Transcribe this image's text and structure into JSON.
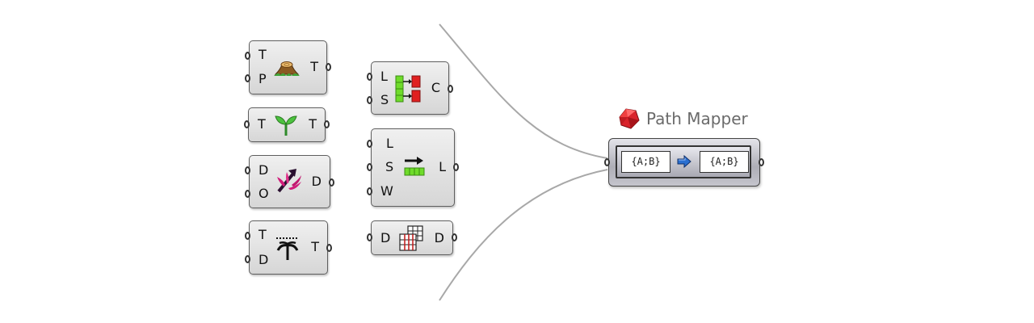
{
  "components": {
    "tree_statistics": {
      "icon": "tree-stump-icon",
      "inputs": [
        "T",
        "P"
      ],
      "outputs": [
        "T"
      ]
    },
    "simplify_tree": {
      "icon": "sprout-icon",
      "inputs": [
        "T"
      ],
      "outputs": [
        "T"
      ]
    },
    "graft_tree": {
      "icon": "graft-branch-icon",
      "inputs": [
        "D",
        "O"
      ],
      "outputs": [
        "D"
      ]
    },
    "flatten_tree": {
      "icon": "flatten-tree-icon",
      "inputs": [
        "T",
        "D"
      ],
      "outputs": [
        "T"
      ]
    },
    "split_list": {
      "icon": "split-list-icon",
      "inputs": [
        "L",
        "S"
      ],
      "outputs": [
        "C"
      ]
    },
    "shift_list": {
      "icon": "shift-list-icon",
      "inputs": [
        "L",
        "S",
        "W"
      ],
      "outputs": [
        "L"
      ]
    },
    "flip_matrix": {
      "icon": "flip-matrix-icon",
      "inputs": [
        "D"
      ],
      "outputs": [
        "D"
      ]
    }
  },
  "path_mapper": {
    "title": "Path Mapper",
    "icon": "red-gem-icon",
    "source_mask": "{A;B}",
    "target_mask": "{A;B}",
    "arrow_icon": "blue-arrow-icon"
  },
  "colors": {
    "wire": "#a8a8a8",
    "title": "#6a6a6a",
    "accent_arrow": "#2a6fd0",
    "gem": "#d9232b"
  }
}
